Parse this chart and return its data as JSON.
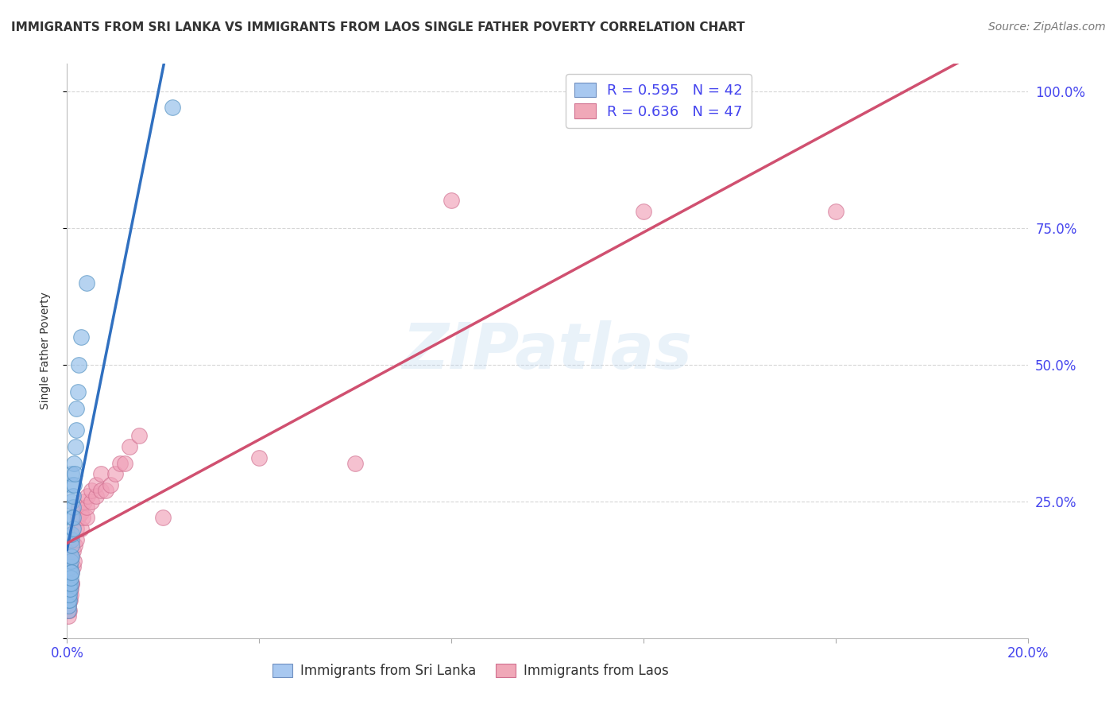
{
  "title": "IMMIGRANTS FROM SRI LANKA VS IMMIGRANTS FROM LAOS SINGLE FATHER POVERTY CORRELATION CHART",
  "source": "Source: ZipAtlas.com",
  "ylabel": "Single Father Poverty",
  "xlim": [
    0.0,
    0.2
  ],
  "ylim": [
    0.0,
    1.05
  ],
  "watermark": "ZIPatlas",
  "sri_lanka": {
    "x": [
      0.0002,
      0.0002,
      0.0002,
      0.0003,
      0.0003,
      0.0003,
      0.0004,
      0.0004,
      0.0005,
      0.0005,
      0.0005,
      0.0006,
      0.0006,
      0.0007,
      0.0007,
      0.0007,
      0.0008,
      0.0008,
      0.0009,
      0.0009,
      0.001,
      0.001,
      0.001,
      0.001,
      0.001,
      0.001,
      0.001,
      0.0012,
      0.0012,
      0.0013,
      0.0013,
      0.0015,
      0.0015,
      0.0016,
      0.0018,
      0.002,
      0.002,
      0.0022,
      0.0025,
      0.003,
      0.004,
      0.022
    ],
    "y": [
      0.05,
      0.07,
      0.08,
      0.06,
      0.09,
      0.11,
      0.07,
      0.1,
      0.08,
      0.1,
      0.12,
      0.09,
      0.13,
      0.1,
      0.12,
      0.15,
      0.11,
      0.14,
      0.12,
      0.18,
      0.15,
      0.17,
      0.19,
      0.22,
      0.25,
      0.28,
      0.3,
      0.2,
      0.24,
      0.22,
      0.26,
      0.28,
      0.32,
      0.3,
      0.35,
      0.38,
      0.42,
      0.45,
      0.5,
      0.55,
      0.65,
      0.97
    ],
    "dot_color": "#90bce8",
    "dot_edge": "#5090c0",
    "line_color": "#3070c0",
    "R": 0.595,
    "N": 42
  },
  "laos": {
    "x": [
      0.0002,
      0.0003,
      0.0003,
      0.0004,
      0.0005,
      0.0005,
      0.0006,
      0.0007,
      0.0008,
      0.0009,
      0.001,
      0.001,
      0.001,
      0.0012,
      0.0013,
      0.0015,
      0.0016,
      0.002,
      0.002,
      0.0022,
      0.0025,
      0.003,
      0.003,
      0.0032,
      0.0035,
      0.004,
      0.004,
      0.0042,
      0.005,
      0.005,
      0.006,
      0.006,
      0.007,
      0.007,
      0.008,
      0.009,
      0.01,
      0.011,
      0.012,
      0.013,
      0.015,
      0.02,
      0.04,
      0.06,
      0.08,
      0.12,
      0.16
    ],
    "y": [
      0.04,
      0.05,
      0.06,
      0.05,
      0.07,
      0.08,
      0.07,
      0.09,
      0.08,
      0.1,
      0.1,
      0.12,
      0.15,
      0.13,
      0.16,
      0.14,
      0.17,
      0.18,
      0.2,
      0.22,
      0.24,
      0.2,
      0.23,
      0.22,
      0.25,
      0.22,
      0.24,
      0.26,
      0.25,
      0.27,
      0.26,
      0.28,
      0.27,
      0.3,
      0.27,
      0.28,
      0.3,
      0.32,
      0.32,
      0.35,
      0.37,
      0.22,
      0.33,
      0.32,
      0.8,
      0.78,
      0.78
    ],
    "dot_color": "#f0a0b8",
    "dot_edge": "#d07090",
    "line_color": "#d05070",
    "R": 0.636,
    "N": 47
  },
  "background_color": "#ffffff",
  "grid_color": "#cccccc",
  "axis_label_color": "#4444ee",
  "title_color": "#333333",
  "ylabel_color": "#333333",
  "title_fontsize": 11,
  "axis_fontsize": 12,
  "source_fontsize": 10,
  "legend_entries": [
    {
      "label": "Immigrants from Sri Lanka",
      "color": "#a8c8f0",
      "edge": "#7090c0",
      "R": "0.595",
      "N": "42"
    },
    {
      "label": "Immigrants from Laos",
      "color": "#f0a8b8",
      "edge": "#d07090",
      "R": "0.636",
      "N": "47"
    }
  ]
}
